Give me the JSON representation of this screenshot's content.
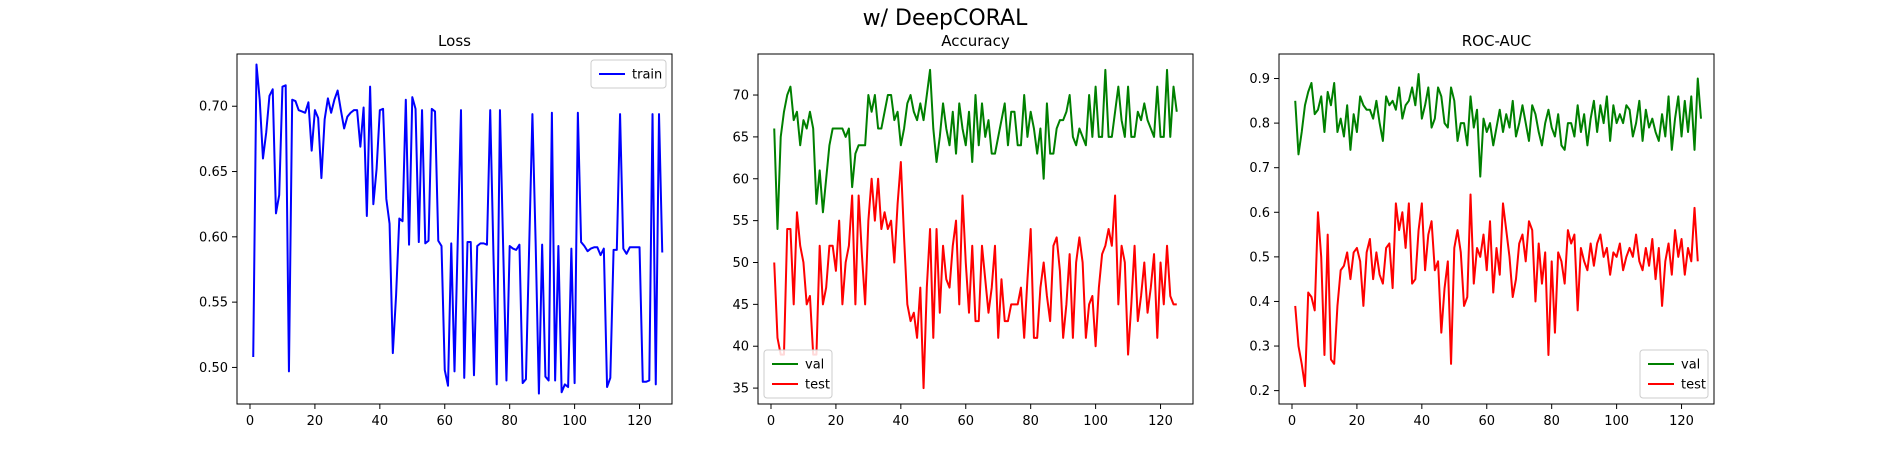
{
  "figure": {
    "title": "w/ DeepCORAL"
  },
  "chart_data": [
    {
      "type": "line",
      "title": "Loss",
      "xlabel": "",
      "ylabel": "",
      "xlim": [
        -4,
        130
      ],
      "ylim": [
        0.472,
        0.74
      ],
      "xticks": [
        0,
        20,
        40,
        60,
        80,
        100,
        120
      ],
      "yticks": [
        0.5,
        0.55,
        0.6,
        0.65,
        0.7
      ],
      "ytick_labels": [
        "0.50",
        "0.55",
        "0.60",
        "0.65",
        "0.70"
      ],
      "legend": "upper-right",
      "series": [
        {
          "name": "train",
          "color": "#0000ff",
          "x_start": 1,
          "values": [
            0.508,
            0.732,
            0.705,
            0.66,
            0.68,
            0.708,
            0.713,
            0.618,
            0.632,
            0.715,
            0.716,
            0.497,
            0.705,
            0.704,
            0.697,
            0.696,
            0.695,
            0.703,
            0.666,
            0.697,
            0.691,
            0.645,
            0.69,
            0.706,
            0.695,
            0.705,
            0.712,
            0.697,
            0.683,
            0.692,
            0.695,
            0.697,
            0.697,
            0.669,
            0.699,
            0.616,
            0.715,
            0.625,
            0.652,
            0.697,
            0.698,
            0.629,
            0.61,
            0.511,
            0.555,
            0.614,
            0.612,
            0.705,
            0.594,
            0.707,
            0.698,
            0.596,
            0.697,
            0.595,
            0.597,
            0.698,
            0.696,
            0.597,
            0.593,
            0.498,
            0.486,
            0.595,
            0.497,
            0.597,
            0.697,
            0.492,
            0.596,
            0.596,
            0.494,
            0.593,
            0.595,
            0.595,
            0.594,
            0.697,
            0.586,
            0.487,
            0.697,
            0.591,
            0.49,
            0.593,
            0.591,
            0.59,
            0.594,
            0.488,
            0.491,
            0.592,
            0.694,
            0.595,
            0.48,
            0.594,
            0.493,
            0.49,
            0.695,
            0.49,
            0.593,
            0.481,
            0.487,
            0.485,
            0.591,
            0.488,
            0.695,
            0.596,
            0.593,
            0.589,
            0.591,
            0.592,
            0.592,
            0.586,
            0.591,
            0.485,
            0.492,
            0.59,
            0.59,
            0.694,
            0.591,
            0.587,
            0.592,
            0.592,
            0.592,
            0.592,
            0.489,
            0.489,
            0.49,
            0.694,
            0.487,
            0.694,
            0.588
          ]
        }
      ]
    },
    {
      "type": "line",
      "title": "Accuracy",
      "xlabel": "",
      "ylabel": "",
      "xlim": [
        -4,
        130
      ],
      "ylim": [
        33.1,
        74.9
      ],
      "xticks": [
        0,
        20,
        40,
        60,
        80,
        100,
        120
      ],
      "yticks": [
        35,
        40,
        45,
        50,
        55,
        60,
        65,
        70
      ],
      "ytick_labels": [
        "35",
        "40",
        "45",
        "50",
        "55",
        "60",
        "65",
        "70"
      ],
      "legend": "lower-left",
      "series": [
        {
          "name": "val",
          "color": "#008000",
          "x_start": 1,
          "values": [
            66,
            54,
            65,
            68,
            70,
            71,
            67,
            68,
            64,
            67,
            66,
            68,
            66,
            57,
            61,
            56,
            60,
            64,
            66,
            66,
            66,
            66,
            65,
            66,
            59,
            63,
            64,
            64,
            64,
            70,
            68,
            70,
            66,
            66,
            68,
            70,
            70,
            67,
            68,
            64,
            66,
            69,
            70,
            68,
            67,
            69,
            67,
            70,
            73,
            66,
            62,
            65,
            69,
            66,
            64,
            68,
            63,
            69,
            66,
            64,
            68,
            62,
            70,
            64,
            69,
            65,
            67,
            63,
            63,
            65,
            67,
            69,
            64,
            68,
            68,
            64,
            64,
            70,
            65,
            68,
            66,
            63,
            66,
            60,
            69,
            63,
            63,
            66,
            67,
            67,
            68,
            70,
            65,
            64,
            66,
            65,
            64,
            70,
            65,
            71,
            65,
            65,
            73,
            65,
            65,
            68,
            71,
            67,
            65,
            71,
            65,
            65,
            68,
            67,
            69,
            67,
            66,
            65,
            71,
            65,
            65,
            73,
            65,
            71,
            68
          ]
        },
        {
          "name": "test",
          "color": "#ff0000",
          "x_start": 1,
          "values": [
            50,
            41,
            39,
            39,
            54,
            54,
            45,
            56,
            52,
            50,
            45,
            46,
            39,
            39,
            52,
            45,
            47,
            52,
            52,
            49,
            55,
            45,
            50,
            52,
            58,
            45,
            58,
            51,
            45,
            55,
            60,
            55,
            60,
            54,
            56,
            54,
            55,
            50,
            57,
            62,
            53,
            45,
            43,
            44,
            41,
            47,
            35,
            47,
            54,
            41,
            54,
            44,
            52,
            48,
            47,
            52,
            55,
            45,
            58,
            50,
            44,
            52,
            43,
            43,
            52,
            48,
            44,
            47,
            52,
            41,
            48,
            43,
            43,
            45,
            45,
            45,
            47,
            41,
            48,
            54,
            41,
            41,
            47,
            50,
            46,
            43,
            52,
            53,
            49,
            41,
            45,
            51,
            41,
            50,
            53,
            50,
            41,
            45,
            46,
            40,
            47,
            51,
            52,
            54,
            52,
            58,
            45,
            52,
            50,
            39,
            45,
            52,
            43,
            46,
            50,
            44,
            47,
            51,
            41,
            50,
            45,
            52,
            46,
            45,
            45
          ]
        }
      ]
    },
    {
      "type": "line",
      "title": "ROC-AUC",
      "xlabel": "",
      "ylabel": "",
      "xlim": [
        -4,
        130
      ],
      "ylim": [
        0.17,
        0.955
      ],
      "xticks": [
        0,
        20,
        40,
        60,
        80,
        100,
        120
      ],
      "yticks": [
        0.2,
        0.3,
        0.4,
        0.5,
        0.6,
        0.7,
        0.8,
        0.9
      ],
      "ytick_labels": [
        "0.2",
        "0.3",
        "0.4",
        "0.5",
        "0.6",
        "0.7",
        "0.8",
        "0.9"
      ],
      "legend": "lower-right",
      "series": [
        {
          "name": "val",
          "color": "#008000",
          "x_start": 1,
          "values": [
            0.85,
            0.73,
            0.78,
            0.84,
            0.87,
            0.89,
            0.82,
            0.83,
            0.86,
            0.78,
            0.87,
            0.84,
            0.89,
            0.78,
            0.81,
            0.77,
            0.84,
            0.74,
            0.82,
            0.78,
            0.86,
            0.84,
            0.83,
            0.83,
            0.81,
            0.85,
            0.8,
            0.76,
            0.86,
            0.84,
            0.85,
            0.83,
            0.88,
            0.81,
            0.84,
            0.85,
            0.88,
            0.84,
            0.91,
            0.81,
            0.84,
            0.88,
            0.79,
            0.81,
            0.88,
            0.86,
            0.8,
            0.79,
            0.88,
            0.85,
            0.76,
            0.8,
            0.8,
            0.75,
            0.86,
            0.79,
            0.83,
            0.68,
            0.81,
            0.78,
            0.8,
            0.75,
            0.79,
            0.83,
            0.78,
            0.82,
            0.79,
            0.85,
            0.77,
            0.8,
            0.84,
            0.8,
            0.76,
            0.84,
            0.82,
            0.78,
            0.75,
            0.8,
            0.83,
            0.79,
            0.77,
            0.82,
            0.75,
            0.74,
            0.8,
            0.8,
            0.77,
            0.84,
            0.78,
            0.82,
            0.75,
            0.81,
            0.85,
            0.78,
            0.84,
            0.8,
            0.86,
            0.76,
            0.84,
            0.8,
            0.82,
            0.8,
            0.84,
            0.83,
            0.77,
            0.8,
            0.85,
            0.76,
            0.83,
            0.79,
            0.81,
            0.78,
            0.76,
            0.82,
            0.77,
            0.86,
            0.74,
            0.81,
            0.86,
            0.77,
            0.85,
            0.78,
            0.86,
            0.74,
            0.9,
            0.81
          ]
        },
        {
          "name": "test",
          "color": "#ff0000",
          "x_start": 1,
          "values": [
            0.39,
            0.3,
            0.26,
            0.21,
            0.42,
            0.41,
            0.38,
            0.6,
            0.5,
            0.28,
            0.55,
            0.27,
            0.26,
            0.39,
            0.47,
            0.48,
            0.51,
            0.45,
            0.51,
            0.52,
            0.49,
            0.39,
            0.51,
            0.54,
            0.45,
            0.51,
            0.46,
            0.44,
            0.52,
            0.53,
            0.43,
            0.62,
            0.56,
            0.6,
            0.52,
            0.62,
            0.44,
            0.45,
            0.56,
            0.62,
            0.47,
            0.55,
            0.58,
            0.47,
            0.49,
            0.33,
            0.43,
            0.49,
            0.26,
            0.52,
            0.56,
            0.51,
            0.39,
            0.41,
            0.64,
            0.44,
            0.52,
            0.5,
            0.55,
            0.47,
            0.58,
            0.42,
            0.52,
            0.46,
            0.62,
            0.56,
            0.5,
            0.41,
            0.45,
            0.53,
            0.55,
            0.49,
            0.58,
            0.56,
            0.4,
            0.53,
            0.44,
            0.51,
            0.28,
            0.49,
            0.33,
            0.51,
            0.49,
            0.44,
            0.56,
            0.53,
            0.55,
            0.38,
            0.52,
            0.49,
            0.47,
            0.53,
            0.48,
            0.53,
            0.55,
            0.5,
            0.52,
            0.46,
            0.51,
            0.5,
            0.53,
            0.47,
            0.5,
            0.52,
            0.5,
            0.55,
            0.49,
            0.47,
            0.52,
            0.48,
            0.54,
            0.45,
            0.52,
            0.39,
            0.49,
            0.53,
            0.46,
            0.56,
            0.5,
            0.54,
            0.46,
            0.52,
            0.49,
            0.61,
            0.49
          ]
        }
      ]
    }
  ]
}
